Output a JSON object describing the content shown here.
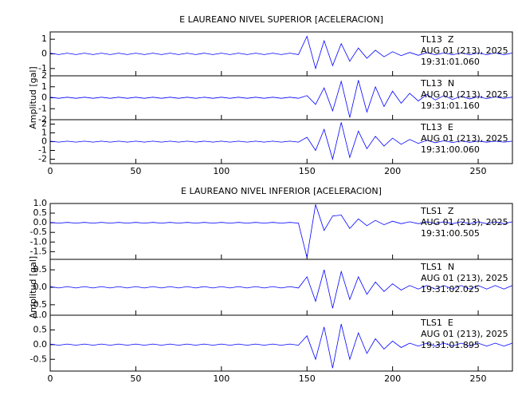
{
  "chart_data": [
    {
      "type": "line",
      "title": "E LAUREANO NIVEL SUPERIOR [ACELERACION]",
      "ylabel": "Amplitud [gal]",
      "color": "#0000ff",
      "xlim": [
        0,
        270
      ],
      "xticks": [
        0,
        50,
        100,
        150,
        200,
        250
      ],
      "x": [
        0,
        5,
        10,
        15,
        20,
        25,
        30,
        35,
        40,
        45,
        50,
        55,
        60,
        65,
        70,
        75,
        80,
        85,
        90,
        95,
        100,
        105,
        110,
        115,
        120,
        125,
        130,
        135,
        140,
        145,
        150,
        155,
        160,
        165,
        170,
        175,
        180,
        185,
        190,
        195,
        200,
        205,
        210,
        215,
        220,
        225,
        230,
        235,
        240,
        245,
        250,
        255,
        260,
        265,
        270
      ],
      "panels": [
        {
          "label": "TL13  Z",
          "date": "AUG 01 (213), 2025",
          "time": "19:31:01.060",
          "ylim": [
            -1.5,
            1.5
          ],
          "yticks": [
            -1,
            0,
            1
          ],
          "values": [
            0.05,
            -0.05,
            0.05,
            -0.05,
            0.05,
            -0.05,
            0.05,
            -0.05,
            0.05,
            -0.05,
            0.05,
            -0.05,
            0.05,
            -0.05,
            0.05,
            -0.05,
            0.05,
            -0.05,
            0.05,
            -0.05,
            0.05,
            -0.05,
            0.05,
            -0.05,
            0.05,
            -0.05,
            0.05,
            -0.05,
            0.05,
            -0.05,
            1.2,
            -1.0,
            0.9,
            -0.8,
            0.7,
            -0.5,
            0.4,
            -0.3,
            0.25,
            -0.2,
            0.15,
            -0.12,
            0.1,
            -0.1,
            0.08,
            -0.06,
            0.06,
            -0.06,
            0.06,
            -0.06,
            0.06,
            -0.06,
            0.06,
            -0.06,
            0.06
          ]
        },
        {
          "label": "TL13  N",
          "date": "AUG 01 (213), 2025",
          "time": "19:31:01.160",
          "ylim": [
            -2,
            2
          ],
          "yticks": [
            -2,
            -1,
            0,
            1,
            2
          ],
          "values": [
            0.05,
            -0.05,
            0.05,
            -0.05,
            0.05,
            -0.05,
            0.05,
            -0.05,
            0.05,
            -0.05,
            0.05,
            -0.05,
            0.05,
            -0.05,
            0.05,
            -0.05,
            0.05,
            -0.05,
            0.05,
            -0.05,
            0.05,
            -0.05,
            0.05,
            -0.05,
            0.05,
            -0.05,
            0.05,
            -0.05,
            0.05,
            -0.05,
            0.2,
            -0.6,
            0.9,
            -1.2,
            1.5,
            -1.8,
            1.6,
            -1.3,
            1.0,
            -0.8,
            0.6,
            -0.5,
            0.4,
            -0.3,
            0.3,
            -0.2,
            0.2,
            -0.15,
            0.12,
            -0.1,
            0.1,
            -0.08,
            0.08,
            -0.06,
            0.06
          ]
        },
        {
          "label": "TL13  E",
          "date": "AUG 01 (213), 2025",
          "time": "19:31:00.060",
          "ylim": [
            -2.5,
            2.5
          ],
          "yticks": [
            -2,
            -1,
            0,
            1,
            2
          ],
          "values": [
            0.05,
            -0.05,
            0.05,
            -0.05,
            0.05,
            -0.05,
            0.05,
            -0.05,
            0.05,
            -0.05,
            0.05,
            -0.05,
            0.05,
            -0.05,
            0.05,
            -0.05,
            0.05,
            -0.05,
            0.05,
            -0.05,
            0.05,
            -0.05,
            0.05,
            -0.05,
            0.05,
            -0.05,
            0.05,
            -0.05,
            0.05,
            -0.05,
            0.5,
            -1.0,
            1.4,
            -2.0,
            2.2,
            -1.8,
            1.2,
            -0.8,
            0.6,
            -0.5,
            0.4,
            -0.3,
            0.25,
            -0.2,
            0.15,
            -0.12,
            0.1,
            -0.1,
            0.08,
            -0.08,
            0.06,
            -0.06,
            0.05,
            -0.05,
            0.05
          ]
        }
      ]
    },
    {
      "type": "line",
      "title": "E LAUREANO NIVEL INFERIOR [ACELERACION]",
      "ylabel": "Amplitud [gal]",
      "color": "#0000ff",
      "xlim": [
        0,
        270
      ],
      "xticks": [
        0,
        50,
        100,
        150,
        200,
        250
      ],
      "x": [
        0,
        5,
        10,
        15,
        20,
        25,
        30,
        35,
        40,
        45,
        50,
        55,
        60,
        65,
        70,
        75,
        80,
        85,
        90,
        95,
        100,
        105,
        110,
        115,
        120,
        125,
        130,
        135,
        140,
        145,
        150,
        155,
        160,
        165,
        170,
        175,
        180,
        185,
        190,
        195,
        200,
        205,
        210,
        215,
        220,
        225,
        230,
        235,
        240,
        245,
        250,
        255,
        260,
        265,
        270
      ],
      "panels": [
        {
          "label": "TLS1  Z",
          "date": "AUG 01 (213), 2025",
          "time": "19:31:00.505",
          "ylim": [
            -1.9,
            1.0
          ],
          "yticks": [
            {
              "value": -1.5,
              "label": "-1.5"
            },
            {
              "value": -1,
              "label": "-1.0"
            },
            -0.5,
            {
              "value": 0,
              "label": "0.0"
            },
            0.5,
            {
              "value": 1,
              "label": "1.0"
            }
          ],
          "values": [
            0.02,
            -0.02,
            0.02,
            -0.02,
            0.02,
            -0.02,
            0.02,
            -0.02,
            0.02,
            -0.02,
            0.02,
            -0.02,
            0.02,
            -0.02,
            0.02,
            -0.02,
            0.02,
            -0.02,
            0.02,
            -0.02,
            0.02,
            -0.02,
            0.02,
            -0.02,
            0.02,
            -0.02,
            0.02,
            -0.02,
            0.02,
            -0.02,
            -1.8,
            0.95,
            -0.4,
            0.35,
            0.4,
            -0.3,
            0.2,
            -0.15,
            0.12,
            -0.1,
            0.08,
            -0.05,
            0.05,
            -0.05,
            0.05,
            -0.05,
            0.05,
            -0.05,
            0.05,
            -0.05,
            0.05,
            -0.05,
            0.05,
            -0.05,
            0.05
          ]
        },
        {
          "label": "TLS1  N",
          "date": "AUG 01 (213), 2025",
          "time": "19:31:02.025",
          "ylim": [
            -0.8,
            0.8
          ],
          "yticks": [
            -0.5,
            {
              "value": 0,
              "label": "0.0"
            },
            0.5
          ],
          "values": [
            0.02,
            -0.02,
            0.02,
            -0.02,
            0.02,
            -0.02,
            0.02,
            -0.02,
            0.02,
            -0.02,
            0.02,
            -0.02,
            0.02,
            -0.02,
            0.02,
            -0.02,
            0.02,
            -0.02,
            0.02,
            -0.02,
            0.02,
            -0.02,
            0.02,
            -0.02,
            0.02,
            -0.02,
            0.02,
            -0.02,
            0.02,
            -0.02,
            0.3,
            -0.4,
            0.5,
            -0.6,
            0.45,
            -0.35,
            0.3,
            -0.2,
            0.15,
            -0.12,
            0.1,
            -0.08,
            0.05,
            -0.05,
            0.05,
            -0.05,
            0.05,
            -0.05,
            0.05,
            -0.05,
            0.05,
            -0.05,
            0.05,
            -0.05,
            0.05
          ]
        },
        {
          "label": "TLS1  E",
          "date": "AUG 01 (213), 2025",
          "time": "19:31:01.895",
          "ylim": [
            -0.9,
            1.0
          ],
          "yticks": [
            -0.5,
            {
              "value": 0,
              "label": "0.0"
            },
            0.5,
            {
              "value": 1,
              "label": "1.0"
            }
          ],
          "values": [
            0.02,
            -0.02,
            0.02,
            -0.02,
            0.02,
            -0.02,
            0.02,
            -0.02,
            0.02,
            -0.02,
            0.02,
            -0.02,
            0.02,
            -0.02,
            0.02,
            -0.02,
            0.02,
            -0.02,
            0.02,
            -0.02,
            0.02,
            -0.02,
            0.02,
            -0.02,
            0.02,
            -0.02,
            0.02,
            -0.02,
            0.02,
            -0.02,
            0.3,
            -0.5,
            0.6,
            -0.8,
            0.7,
            -0.5,
            0.4,
            -0.3,
            0.2,
            -0.15,
            0.12,
            -0.1,
            0.05,
            -0.05,
            0.05,
            -0.05,
            0.05,
            -0.05,
            0.05,
            -0.05,
            0.05,
            -0.05,
            0.05,
            -0.05,
            0.05
          ]
        }
      ]
    }
  ]
}
